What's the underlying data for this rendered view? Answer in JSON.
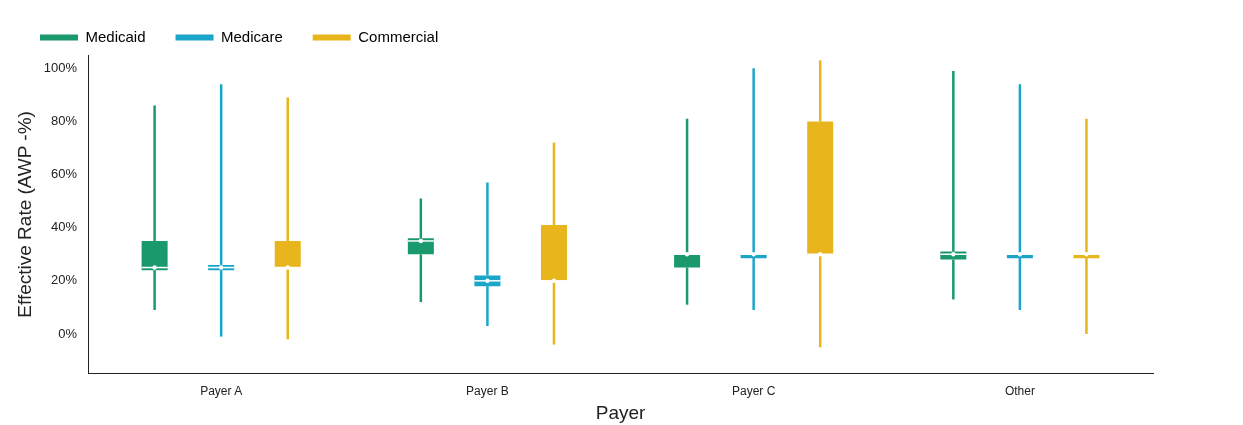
{
  "chart_data": {
    "type": "box",
    "xlabel": "Payer",
    "ylabel": "Effective Rate (AWP -%)",
    "categories": [
      "Payer A",
      "Payer B",
      "Payer C",
      "Other"
    ],
    "ylim": [
      -15,
      105
    ],
    "yticks": [
      {
        "value": 0,
        "label": "0%"
      },
      {
        "value": 20,
        "label": "20%"
      },
      {
        "value": 40,
        "label": "40%"
      },
      {
        "value": 60,
        "label": "60%"
      },
      {
        "value": 80,
        "label": "80%"
      },
      {
        "value": 100,
        "label": "100%"
      }
    ],
    "grid": false,
    "legend": "top left",
    "series": [
      {
        "name": "Medicaid",
        "color": "#1a9a6c",
        "boxes": [
          {
            "low": 9,
            "q1": 24,
            "median": 25,
            "q3": 35,
            "high": 86
          },
          {
            "low": 12,
            "q1": 30,
            "median": 35,
            "q3": 36,
            "high": 51
          },
          {
            "low": 11,
            "q1": 25,
            "median": 30,
            "q3": 30,
            "high": 81
          },
          {
            "low": 13,
            "q1": 28,
            "median": 30,
            "q3": 31,
            "high": 99
          }
        ]
      },
      {
        "name": "Medicare",
        "color": "#1ba6c9",
        "boxes": [
          {
            "low": -1,
            "q1": 24,
            "median": 25,
            "q3": 26,
            "high": 94
          },
          {
            "low": 3,
            "q1": 18,
            "median": 20,
            "q3": 22,
            "high": 57
          },
          {
            "low": 9,
            "q1": 30,
            "median": 30,
            "q3": 30,
            "high": 100
          },
          {
            "low": 9,
            "q1": 30,
            "median": 30,
            "q3": 30,
            "high": 94
          }
        ]
      },
      {
        "name": "Commercial",
        "color": "#e8b51c",
        "boxes": [
          {
            "low": -2,
            "q1": 25,
            "median": 25,
            "q3": 35,
            "high": 89
          },
          {
            "low": -4,
            "q1": 20,
            "median": 20,
            "q3": 41,
            "high": 72
          },
          {
            "low": -5,
            "q1": 30,
            "median": 30,
            "q3": 80,
            "high": 103
          },
          {
            "low": 0,
            "q1": 30,
            "median": 30,
            "q3": 30,
            "high": 81
          }
        ]
      }
    ]
  }
}
